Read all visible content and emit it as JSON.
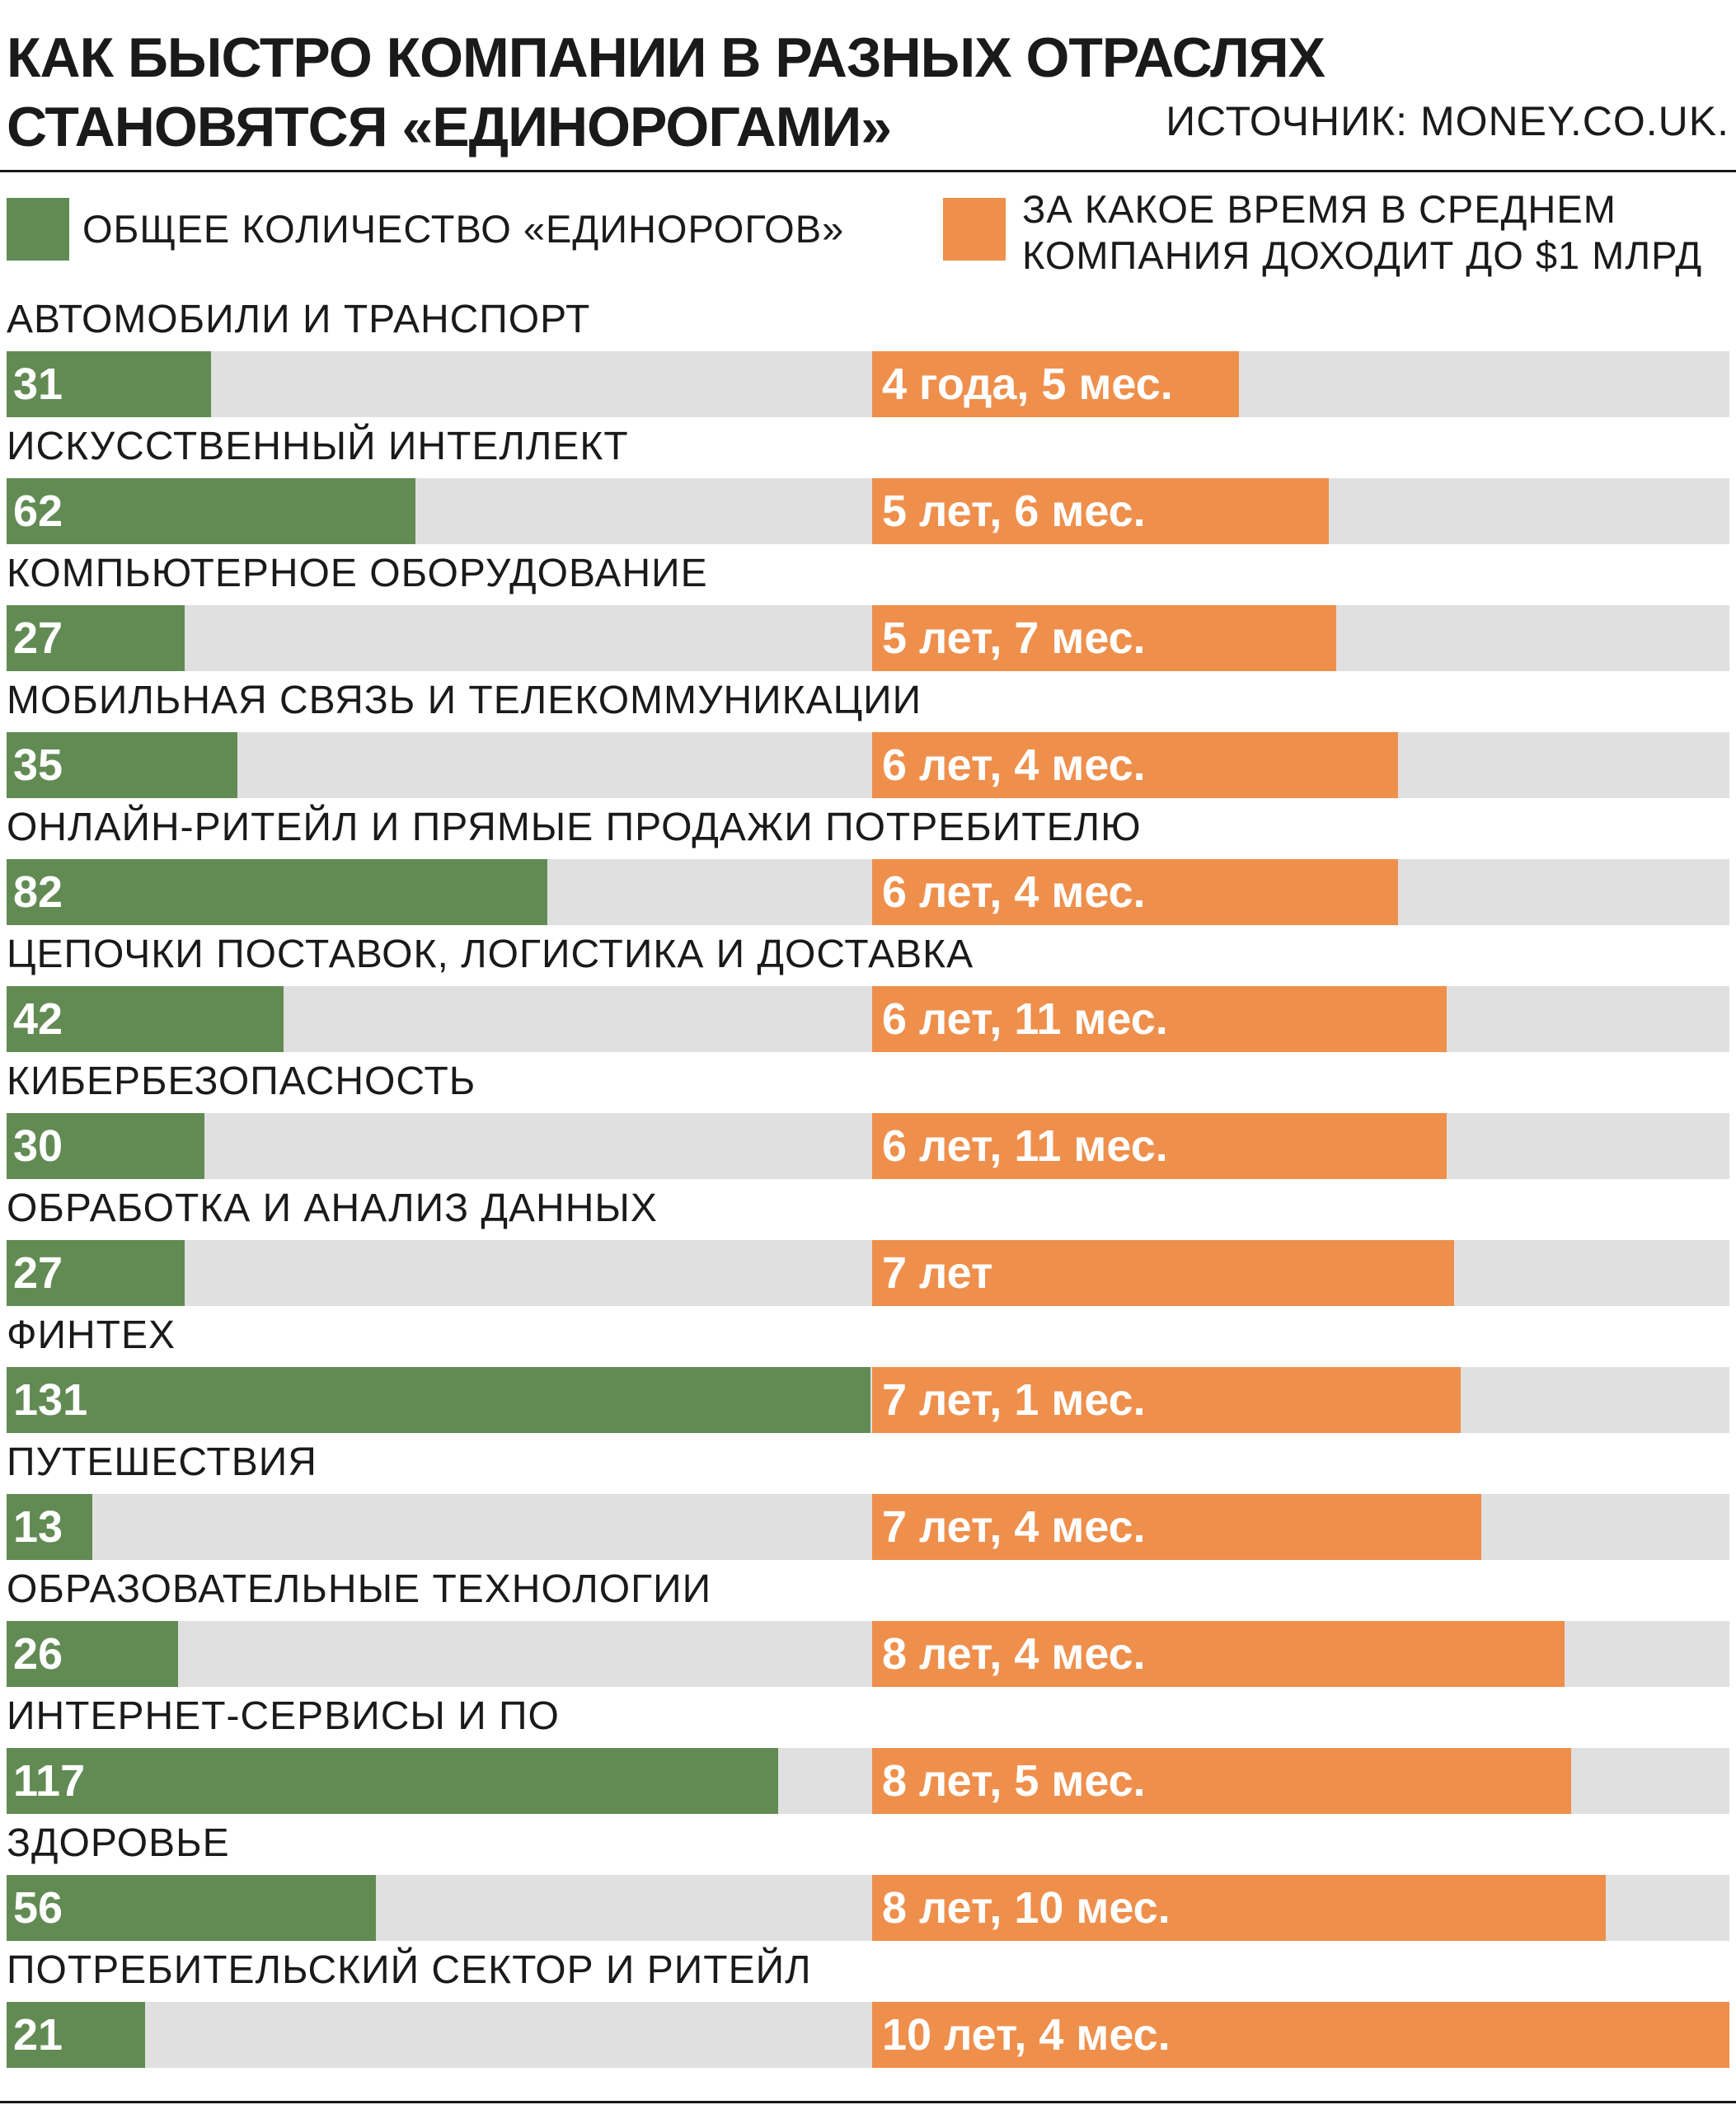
{
  "title_line1": "КАК БЫСТРО КОМПАНИИ В РАЗНЫХ ОТРАСЛЯХ",
  "title_line2": "СТАНОВЯТСЯ «ЕДИНОРОГАМИ»",
  "source": "ИСТОЧНИК: MONEY.CO.UK.",
  "legend": {
    "count_label": "ОБЩЕЕ КОЛИЧЕСТВО «ЕДИНОРОГОВ»",
    "time_label_line1": "ЗА КАКОЕ ВРЕМЯ В СРЕДНЕМ",
    "time_label_line2": "КОМПАНИЯ ДОХОДИТ ДО $1 МЛРД"
  },
  "colors": {
    "count": "#628b54",
    "time": "#ef8f4c",
    "track": "#e0e0e0",
    "text": "#1a1a1a"
  },
  "chart_data": {
    "type": "bar",
    "orientation": "horizontal",
    "categories": [
      "АВТОМОБИЛИ И ТРАНСПОРТ",
      "ИСКУССТВЕННЫЙ ИНТЕЛЛЕКТ",
      "КОМПЬЮТЕРНОЕ ОБОРУДОВАНИЕ",
      "МОБИЛЬНАЯ СВЯЗЬ И ТЕЛЕКОММУНИКАЦИИ",
      "ОНЛАЙН-РИТЕЙЛ И ПРЯМЫЕ ПРОДАЖИ ПОТРЕБИТЕЛЮ",
      "ЦЕПОЧКИ ПОСТАВОК, ЛОГИСТИКА И ДОСТАВКА",
      "КИБЕРБЕЗОПАСНОСТЬ",
      "ОБРАБОТКА И АНАЛИЗ ДАННЫХ",
      "ФИНТЕХ",
      "ПУТЕШЕСТВИЯ",
      "ОБРАЗОВАТЕЛЬНЫЕ ТЕХНОЛОГИИ",
      "ИНТЕРНЕТ-СЕРВИСЫ И ПО",
      "ЗДОРОВЬЕ",
      "ПОТРЕБИТЕЛЬСКИЙ СЕКТОР И РИТЕЙЛ"
    ],
    "series": [
      {
        "name": "ОБЩЕЕ КОЛИЧЕСТВО «ЕДИНОРОГОВ»",
        "values": [
          31,
          62,
          27,
          35,
          82,
          42,
          30,
          27,
          131,
          13,
          26,
          117,
          56,
          21
        ],
        "labels": [
          "31",
          "62",
          "27",
          "35",
          "82",
          "42",
          "30",
          "27",
          "131",
          "13",
          "26",
          "117",
          "56",
          "21"
        ],
        "max": 131
      },
      {
        "name": "ЗА КАКОЕ ВРЕМЯ В СРЕДНЕМ КОМПАНИЯ ДОХОДИТ ДО $1 МЛРД",
        "unit": "months",
        "values": [
          53,
          66,
          67,
          76,
          76,
          83,
          83,
          84,
          85,
          88,
          100,
          101,
          106,
          124
        ],
        "labels": [
          "4 года, 5 мес.",
          "5 лет, 6 мес.",
          "5 лет, 7 мес.",
          "6 лет, 4 мес.",
          "6 лет, 4 мес.",
          "6 лет, 11 мес.",
          "6 лет, 11 мес.",
          "7 лет",
          "7 лет, 1 мес.",
          "7 лет, 4 мес.",
          "8 лет, 4 мес.",
          "8 лет, 5 мес.",
          "8 лет, 10 мес.",
          "10 лет, 4 мес."
        ],
        "max": 124
      }
    ]
  }
}
